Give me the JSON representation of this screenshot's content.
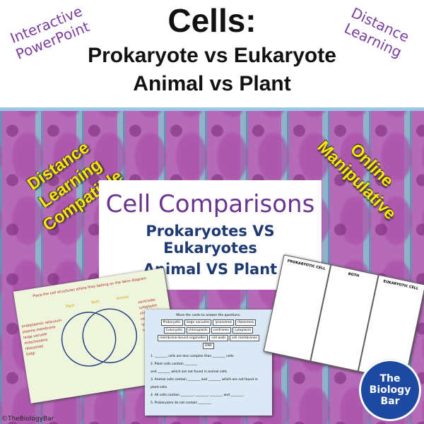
{
  "header": {
    "title": "Cells:",
    "line1": "Prokaryote vs Eukaryote",
    "line2": "Animal vs Plant",
    "left_tag": "Interactive PowerPoint",
    "right_tag": "Distance Learning"
  },
  "banners": {
    "left": "Distance Learning Compatible",
    "right": "Online Manipulative"
  },
  "center_box": {
    "title": "Cell Comparisons",
    "line1": "Prokaryotes VS Eukaryotes",
    "line2": "Animal VS Plant"
  },
  "venn_slide": {
    "title": "Place the cell structures where they belong on the Venn diagram",
    "labels": [
      "Plant",
      "Both",
      "Animal"
    ],
    "left_items": [
      "endoplasmic reticulum",
      "plasma membrane",
      "large vacuole",
      "mitochondria",
      "ribosomes",
      "Golgi"
    ],
    "right_items": [
      "centrioles",
      "cytoplasm",
      "chloroplast",
      "cell walls",
      "lysosome",
      "nucleus"
    ]
  },
  "worksheet": {
    "title": "Move the cards to answer the questions.",
    "cards": [
      "Prokaryotic",
      "large vacuoles",
      "lysosomes",
      "ribosomes",
      "Eukaryotic",
      "chloroplasts",
      "centrioles",
      "cytoplasm",
      "membrane-bound organelles",
      "cell walls",
      "cell membranes",
      "DNA"
    ],
    "questions": [
      "1. ________ cells are less complex than ________ cells.",
      "2. Plant cells contain ________",
      "and ________ which are not found in animal cells.",
      "3. Animal cells contain ________ and ________ which are not found in plant cells.",
      "4. All cells contain ________, ________, ________ and ________.",
      "5. Prokaryotes do not contain ________"
    ]
  },
  "table_slide": {
    "headers": [
      "PROKARYOTIC CELL",
      "BOTH",
      "EUKARYOTIC CELL"
    ]
  },
  "logo": {
    "text": "The Biology Bar"
  },
  "footer": "©TheBiologyBar"
}
